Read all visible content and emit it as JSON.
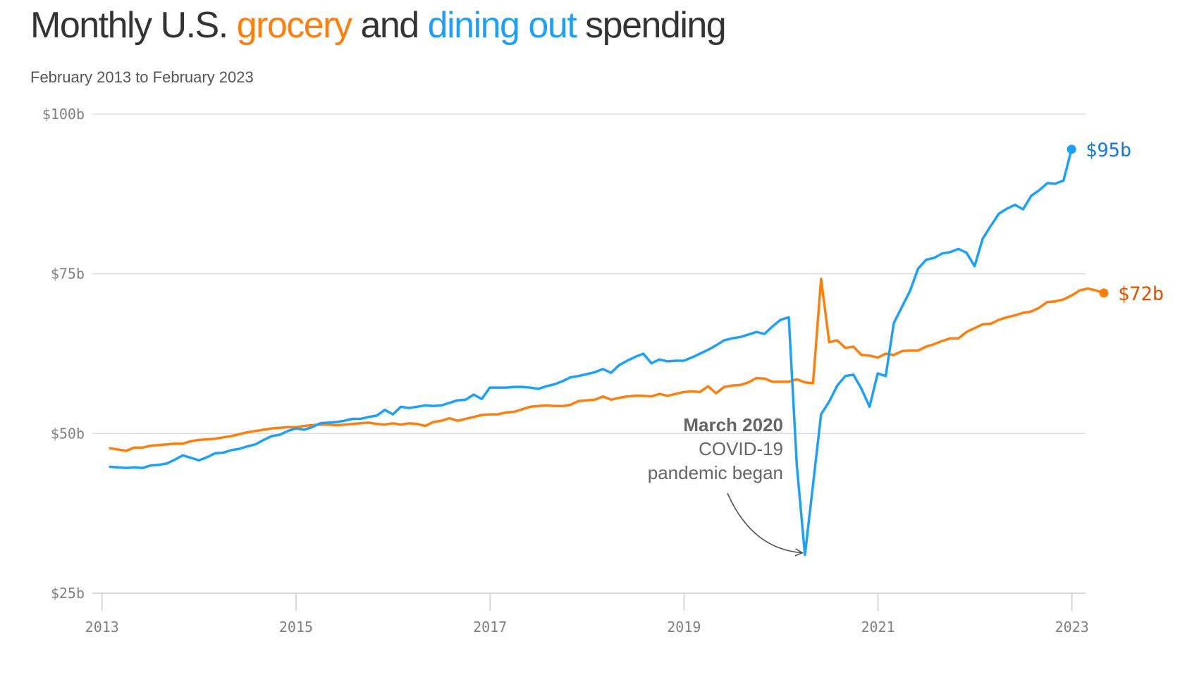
{
  "title": {
    "prefix": "Monthly U.S. ",
    "grocery": "grocery",
    "middle": " and ",
    "dining": "dining out",
    "suffix": " spending"
  },
  "subtitle": "February 2013 to February 2023",
  "colors": {
    "grocery": "#ff7f0e",
    "grocery_end": "#e05000",
    "dining": "#1ea0f5",
    "dining_end": "#1677d4",
    "text": "#333333",
    "grid": "#dddddd"
  },
  "annotation": {
    "bold": "March 2020",
    "line2": "COVID-19",
    "line3": "pandemic began",
    "point_x": 2020.25,
    "point_y": 31
  },
  "chart_data": {
    "type": "line",
    "title": "Monthly U.S. grocery and dining out spending",
    "subtitle": "February 2013 to February 2023",
    "y_ticks": [
      25,
      50,
      75,
      100
    ],
    "y_tick_labels": [
      "$25b",
      "$50b",
      "$75b",
      "$100b"
    ],
    "x_ticks": [
      2013,
      2015,
      2017,
      2019,
      2021,
      2023
    ],
    "x_tick_labels": [
      "2013",
      "2015",
      "2017",
      "2019",
      "2021",
      "2023"
    ],
    "xlim": [
      2012.9,
      2023.14
    ],
    "ylim": [
      25,
      100
    ],
    "grid": "horizontal",
    "x_start": 2013.083,
    "x_step": 0.0833,
    "series": [
      {
        "name": "grocery",
        "color": "#ff7f0e",
        "end_label": "$72b",
        "end_color": "#e05000",
        "values": [
          47.7,
          47.5,
          47.3,
          47.8,
          47.8,
          48.1,
          48.2,
          48.3,
          48.4,
          48.4,
          48.8,
          49.0,
          49.1,
          49.2,
          49.4,
          49.6,
          49.9,
          50.2,
          50.4,
          50.6,
          50.8,
          50.9,
          51.0,
          51.0,
          51.2,
          51.3,
          51.4,
          51.4,
          51.3,
          51.4,
          51.5,
          51.6,
          51.7,
          51.5,
          51.4,
          51.6,
          51.4,
          51.6,
          51.5,
          51.2,
          51.8,
          52.0,
          52.4,
          52.0,
          52.3,
          52.6,
          52.9,
          53.0,
          53.0,
          53.3,
          53.4,
          53.8,
          54.2,
          54.3,
          54.4,
          54.3,
          54.3,
          54.5,
          55.1,
          55.2,
          55.3,
          55.8,
          55.3,
          55.6,
          55.8,
          55.9,
          55.9,
          55.8,
          56.2,
          55.9,
          56.2,
          56.5,
          56.6,
          56.5,
          57.4,
          56.3,
          57.3,
          57.5,
          57.6,
          58.0,
          58.7,
          58.6,
          58.1,
          58.1,
          58.1,
          58.5,
          58.0,
          57.9,
          74.2,
          64.3,
          64.6,
          63.4,
          63.6,
          62.3,
          62.2,
          61.9,
          62.5,
          62.3,
          62.9,
          63.0,
          63.0,
          63.6,
          64.0,
          64.5,
          64.9,
          64.9,
          65.9,
          66.5,
          67.1,
          67.2,
          67.8,
          68.2,
          68.5,
          68.9,
          69.1,
          69.7,
          70.6,
          70.7,
          71.0,
          71.6,
          72.4,
          72.7,
          72.4,
          72.0
        ]
      },
      {
        "name": "dining out",
        "color": "#1ea0f5",
        "end_label": "$95b",
        "end_color": "#1677d4",
        "values": [
          44.8,
          44.7,
          44.6,
          44.7,
          44.6,
          45.0,
          45.1,
          45.3,
          45.9,
          46.6,
          46.2,
          45.8,
          46.3,
          46.9,
          47.0,
          47.4,
          47.6,
          48.0,
          48.3,
          49.0,
          49.6,
          49.8,
          50.4,
          50.8,
          50.6,
          51.0,
          51.6,
          51.7,
          51.8,
          52.0,
          52.3,
          52.3,
          52.6,
          52.8,
          53.7,
          53.0,
          54.2,
          54.0,
          54.2,
          54.4,
          54.3,
          54.4,
          54.8,
          55.2,
          55.3,
          56.1,
          55.4,
          57.2,
          57.2,
          57.2,
          57.3,
          57.3,
          57.2,
          57.0,
          57.4,
          57.7,
          58.2,
          58.8,
          59.0,
          59.3,
          59.6,
          60.1,
          59.5,
          60.7,
          61.4,
          62.0,
          62.5,
          61.0,
          61.6,
          61.3,
          61.4,
          61.4,
          61.9,
          62.5,
          63.1,
          63.8,
          64.6,
          64.9,
          65.1,
          65.5,
          65.9,
          65.6,
          66.8,
          67.8,
          68.2,
          45.0,
          31.0,
          42.0,
          53.0,
          55.0,
          57.5,
          59.0,
          59.2,
          57.0,
          54.2,
          59.4,
          59.0,
          67.3,
          69.8,
          72.3,
          75.8,
          77.2,
          77.5,
          78.2,
          78.4,
          78.9,
          78.3,
          76.2,
          80.5,
          82.5,
          84.4,
          85.2,
          85.8,
          85.1,
          87.2,
          88.1,
          89.2,
          89.1,
          89.6,
          94.5
        ]
      }
    ]
  }
}
